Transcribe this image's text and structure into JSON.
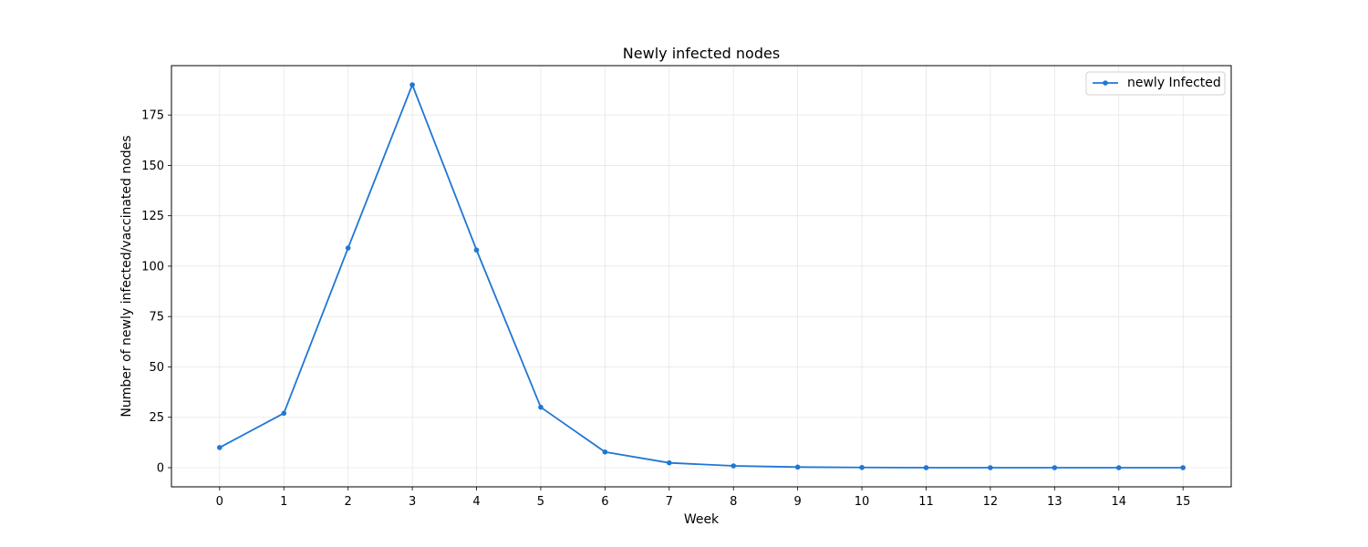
{
  "chart_data": {
    "type": "line",
    "title": "Newly infected nodes",
    "xlabel": "Week",
    "ylabel": "Number of newly infected/vaccinated nodes",
    "x": [
      0,
      1,
      2,
      3,
      4,
      5,
      6,
      7,
      8,
      9,
      10,
      11,
      12,
      13,
      14,
      15
    ],
    "xticks": [
      "0",
      "1",
      "2",
      "3",
      "4",
      "5",
      "6",
      "7",
      "8",
      "9",
      "10",
      "11",
      "12",
      "13",
      "14",
      "15"
    ],
    "xlim": [
      -0.75,
      15.75
    ],
    "ylim": [
      -9.5,
      199.5
    ],
    "yticks": [
      "0",
      "25",
      "50",
      "75",
      "100",
      "125",
      "150",
      "175"
    ],
    "grid": true,
    "legend_position": "upper right",
    "series": [
      {
        "name": "newly Infected",
        "color": "#1f77d4",
        "values": [
          10,
          27,
          109,
          190,
          108,
          30,
          7.8,
          2.4,
          0.9,
          0.3,
          0.1,
          0,
          0,
          0,
          0,
          0
        ]
      }
    ]
  }
}
